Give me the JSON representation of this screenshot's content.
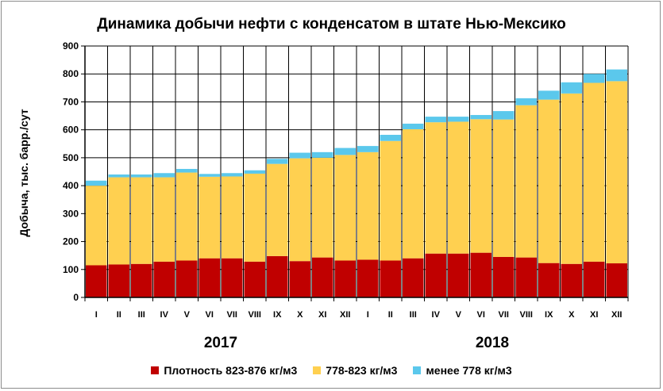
{
  "chart_data": {
    "type": "bar",
    "stacked": true,
    "title": "Динамика добычи нефти с конденсатом в штате Нью-Мексико",
    "ylabel": "Добыча, тыс. барр./сут",
    "ylim": [
      0,
      900
    ],
    "yticks": [
      0,
      100,
      200,
      300,
      400,
      500,
      600,
      700,
      800,
      900
    ],
    "grid": true,
    "legend_position": "bottom",
    "categories": [
      "I",
      "II",
      "III",
      "IV",
      "V",
      "VI",
      "VII",
      "VIII",
      "IX",
      "X",
      "XI",
      "XII",
      "I",
      "II",
      "III",
      "IV",
      "V",
      "VI",
      "VII",
      "VIII",
      "IX",
      "X",
      "XI",
      "XII"
    ],
    "year_labels": [
      {
        "label": "2017",
        "start_index": 0,
        "end_index": 11
      },
      {
        "label": "2018",
        "start_index": 12,
        "end_index": 23
      }
    ],
    "series": [
      {
        "name": "Плотность 823-876 кг/м3",
        "color": "#c00000",
        "values": [
          115,
          118,
          120,
          128,
          132,
          140,
          140,
          128,
          148,
          130,
          143,
          132,
          135,
          132,
          140,
          157,
          157,
          160,
          145,
          143,
          123,
          120,
          128,
          122
        ]
      },
      {
        "name": "778-823 кг/м3",
        "color": "#ffd050",
        "values": [
          285,
          312,
          310,
          302,
          315,
          292,
          293,
          315,
          330,
          368,
          357,
          378,
          385,
          428,
          462,
          470,
          472,
          478,
          492,
          545,
          585,
          610,
          640,
          652
        ]
      },
      {
        "name": "менее 778 кг/м3",
        "color": "#5bc8ec",
        "values": [
          18,
          10,
          10,
          15,
          13,
          10,
          12,
          12,
          18,
          20,
          20,
          25,
          22,
          22,
          20,
          20,
          18,
          15,
          30,
          25,
          32,
          40,
          32,
          42
        ]
      }
    ]
  }
}
